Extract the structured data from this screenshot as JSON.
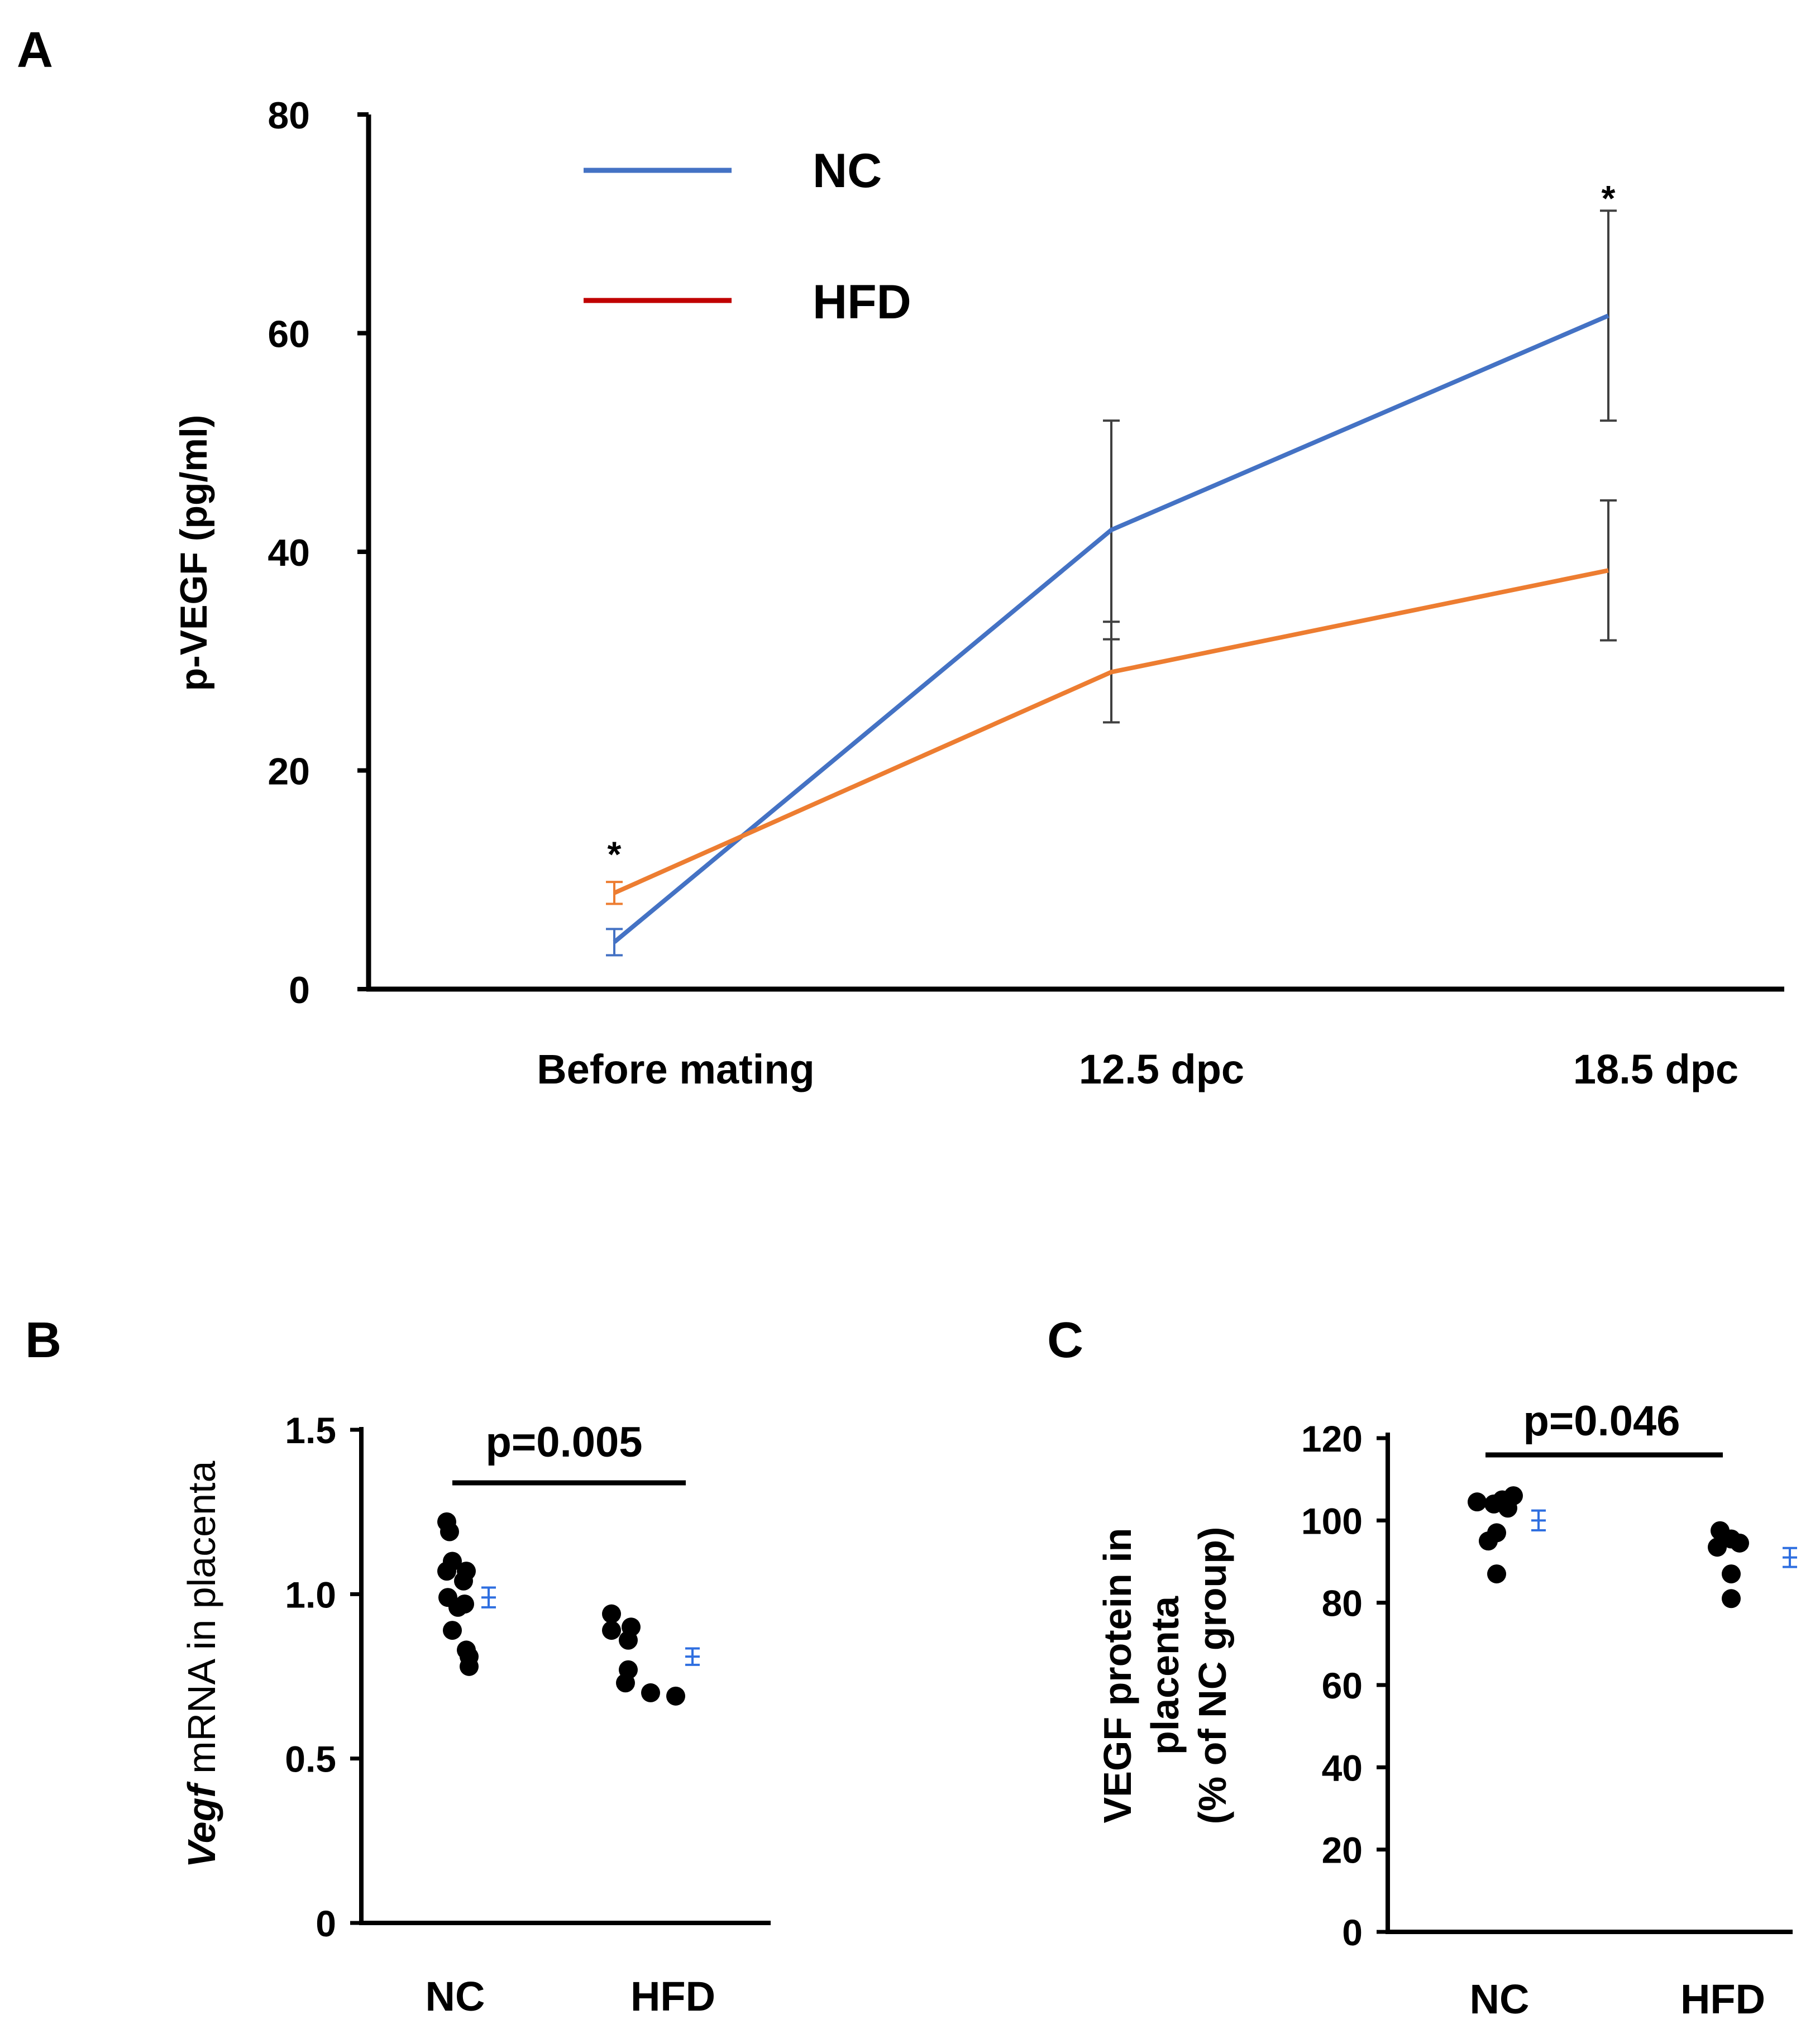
{
  "colors": {
    "nc_line": "#4472C4",
    "hfd_line": "#ED7D31",
    "hfd_legend": "#C00000",
    "axis": "#000000",
    "errorbar": "#404040",
    "dot": "#000000",
    "summary": "#2F6FE0"
  },
  "chart_data": [
    {
      "panel": "A",
      "type": "line",
      "title": "",
      "ylabel": "p-VEGF (pg/ml)",
      "xlabel": "",
      "ylim": [
        0,
        80
      ],
      "yticks": [
        "0",
        "20",
        "40",
        "60",
        "80"
      ],
      "categories": [
        "Before mating",
        "12.5 dpc",
        "18.5 dpc"
      ],
      "legend": [
        "NC",
        "HFD"
      ],
      "legend_position": "top-left",
      "series": [
        {
          "name": "NC",
          "values": [
            4.3,
            42,
            61.6
          ],
          "errors": [
            1.2,
            10,
            9.6
          ]
        },
        {
          "name": "HFD",
          "values": [
            8.8,
            29,
            38.3
          ],
          "errors": [
            1.0,
            4.6,
            6.4
          ]
        }
      ],
      "annotations": [
        {
          "text": "*",
          "category": "Before mating",
          "y": 13.5
        },
        {
          "text": "*",
          "category": "18.5 dpc",
          "y": 73.5
        }
      ]
    },
    {
      "panel": "B",
      "type": "scatter",
      "ylabel": "Vegf mRNA in placenta",
      "ylabel_italic": "Vegf",
      "ylabel_rest": " mRNA in placenta",
      "ylim": [
        0,
        1.5
      ],
      "yticks": [
        "0",
        "0.5",
        "1.0",
        "1.5"
      ],
      "categories": [
        "NC",
        "HFD"
      ],
      "annotation": "p=0.005",
      "groups": [
        {
          "name": "NC",
          "values": [
            1.22,
            1.19,
            1.1,
            1.07,
            1.07,
            1.04,
            0.99,
            0.97,
            0.96,
            0.89,
            0.83,
            0.81,
            0.78
          ],
          "mean": 0.99,
          "sem": 0.03
        },
        {
          "name": "HFD",
          "values": [
            0.94,
            0.9,
            0.89,
            0.86,
            0.77,
            0.73,
            0.7,
            0.69
          ],
          "mean": 0.81,
          "sem": 0.025
        }
      ]
    },
    {
      "panel": "C",
      "type": "scatter",
      "ylabel": "VEGF protein in placenta (% of NC group)",
      "ylabel_lines": [
        "VEGF protein in",
        "placenta",
        "(% of NC group)"
      ],
      "ylim": [
        0,
        120
      ],
      "yticks": [
        "0",
        "20",
        "40",
        "60",
        "80",
        "100",
        "120"
      ],
      "categories": [
        "NC",
        "HFD"
      ],
      "annotation": "p=0.046",
      "groups": [
        {
          "name": "NC",
          "values": [
            106,
            105,
            104.5,
            104,
            103,
            97,
            95,
            87
          ],
          "mean": 100,
          "sem": 2.4
        },
        {
          "name": "HFD",
          "values": [
            97.5,
            95.5,
            94.5,
            93.5,
            87,
            81
          ],
          "mean": 91,
          "sem": 2.3
        }
      ]
    }
  ],
  "panels": [
    "A",
    "B",
    "C"
  ]
}
